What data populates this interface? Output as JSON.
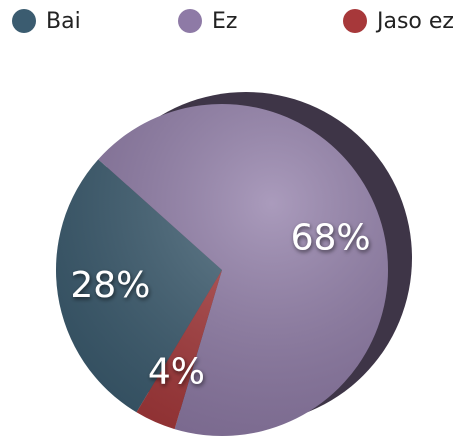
{
  "chart_data": {
    "type": "pie",
    "categories": [
      "Bai",
      "Ez",
      "Jaso ez"
    ],
    "values": [
      28,
      68,
      4
    ],
    "value_labels": [
      "28%",
      "68%",
      "4%"
    ],
    "colors": [
      "#3b5c70",
      "#8e7aa6",
      "#a7383a"
    ],
    "legend": "top"
  }
}
